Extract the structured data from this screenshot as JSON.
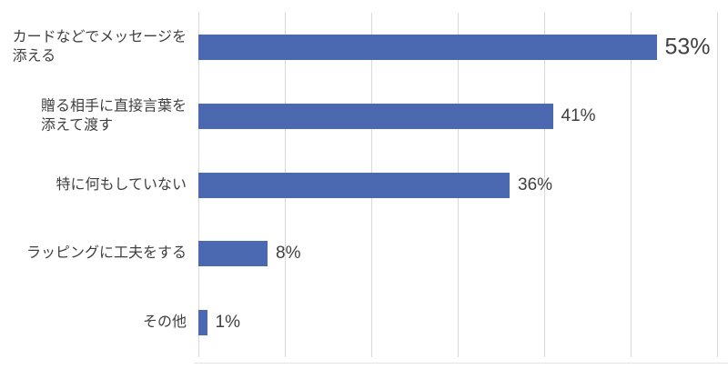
{
  "chart_data": {
    "type": "bar",
    "orientation": "horizontal",
    "title": "",
    "categories": [
      "カードなどでメッセージを\n添える",
      "贈る相手に直接言葉を\n添えて渡す",
      "特に何もしていない",
      "ラッピングに工夫をする",
      "その他"
    ],
    "values": [
      53,
      41,
      36,
      8,
      1
    ],
    "value_labels": [
      "53%",
      "41%",
      "36%",
      "8%",
      "1%"
    ],
    "emphasized_index": 0,
    "xlabel": "",
    "ylabel": "",
    "xlim": [
      0,
      60
    ],
    "tick_step": 10,
    "grid": true,
    "legend": "none"
  },
  "colors": {
    "bar": "#4a69b1",
    "gridline": "#d9d9d9",
    "axis_line": "#e3e3e3",
    "category_text": "#3f3f3f",
    "value_text": "#404040",
    "background": "#ffffff"
  }
}
